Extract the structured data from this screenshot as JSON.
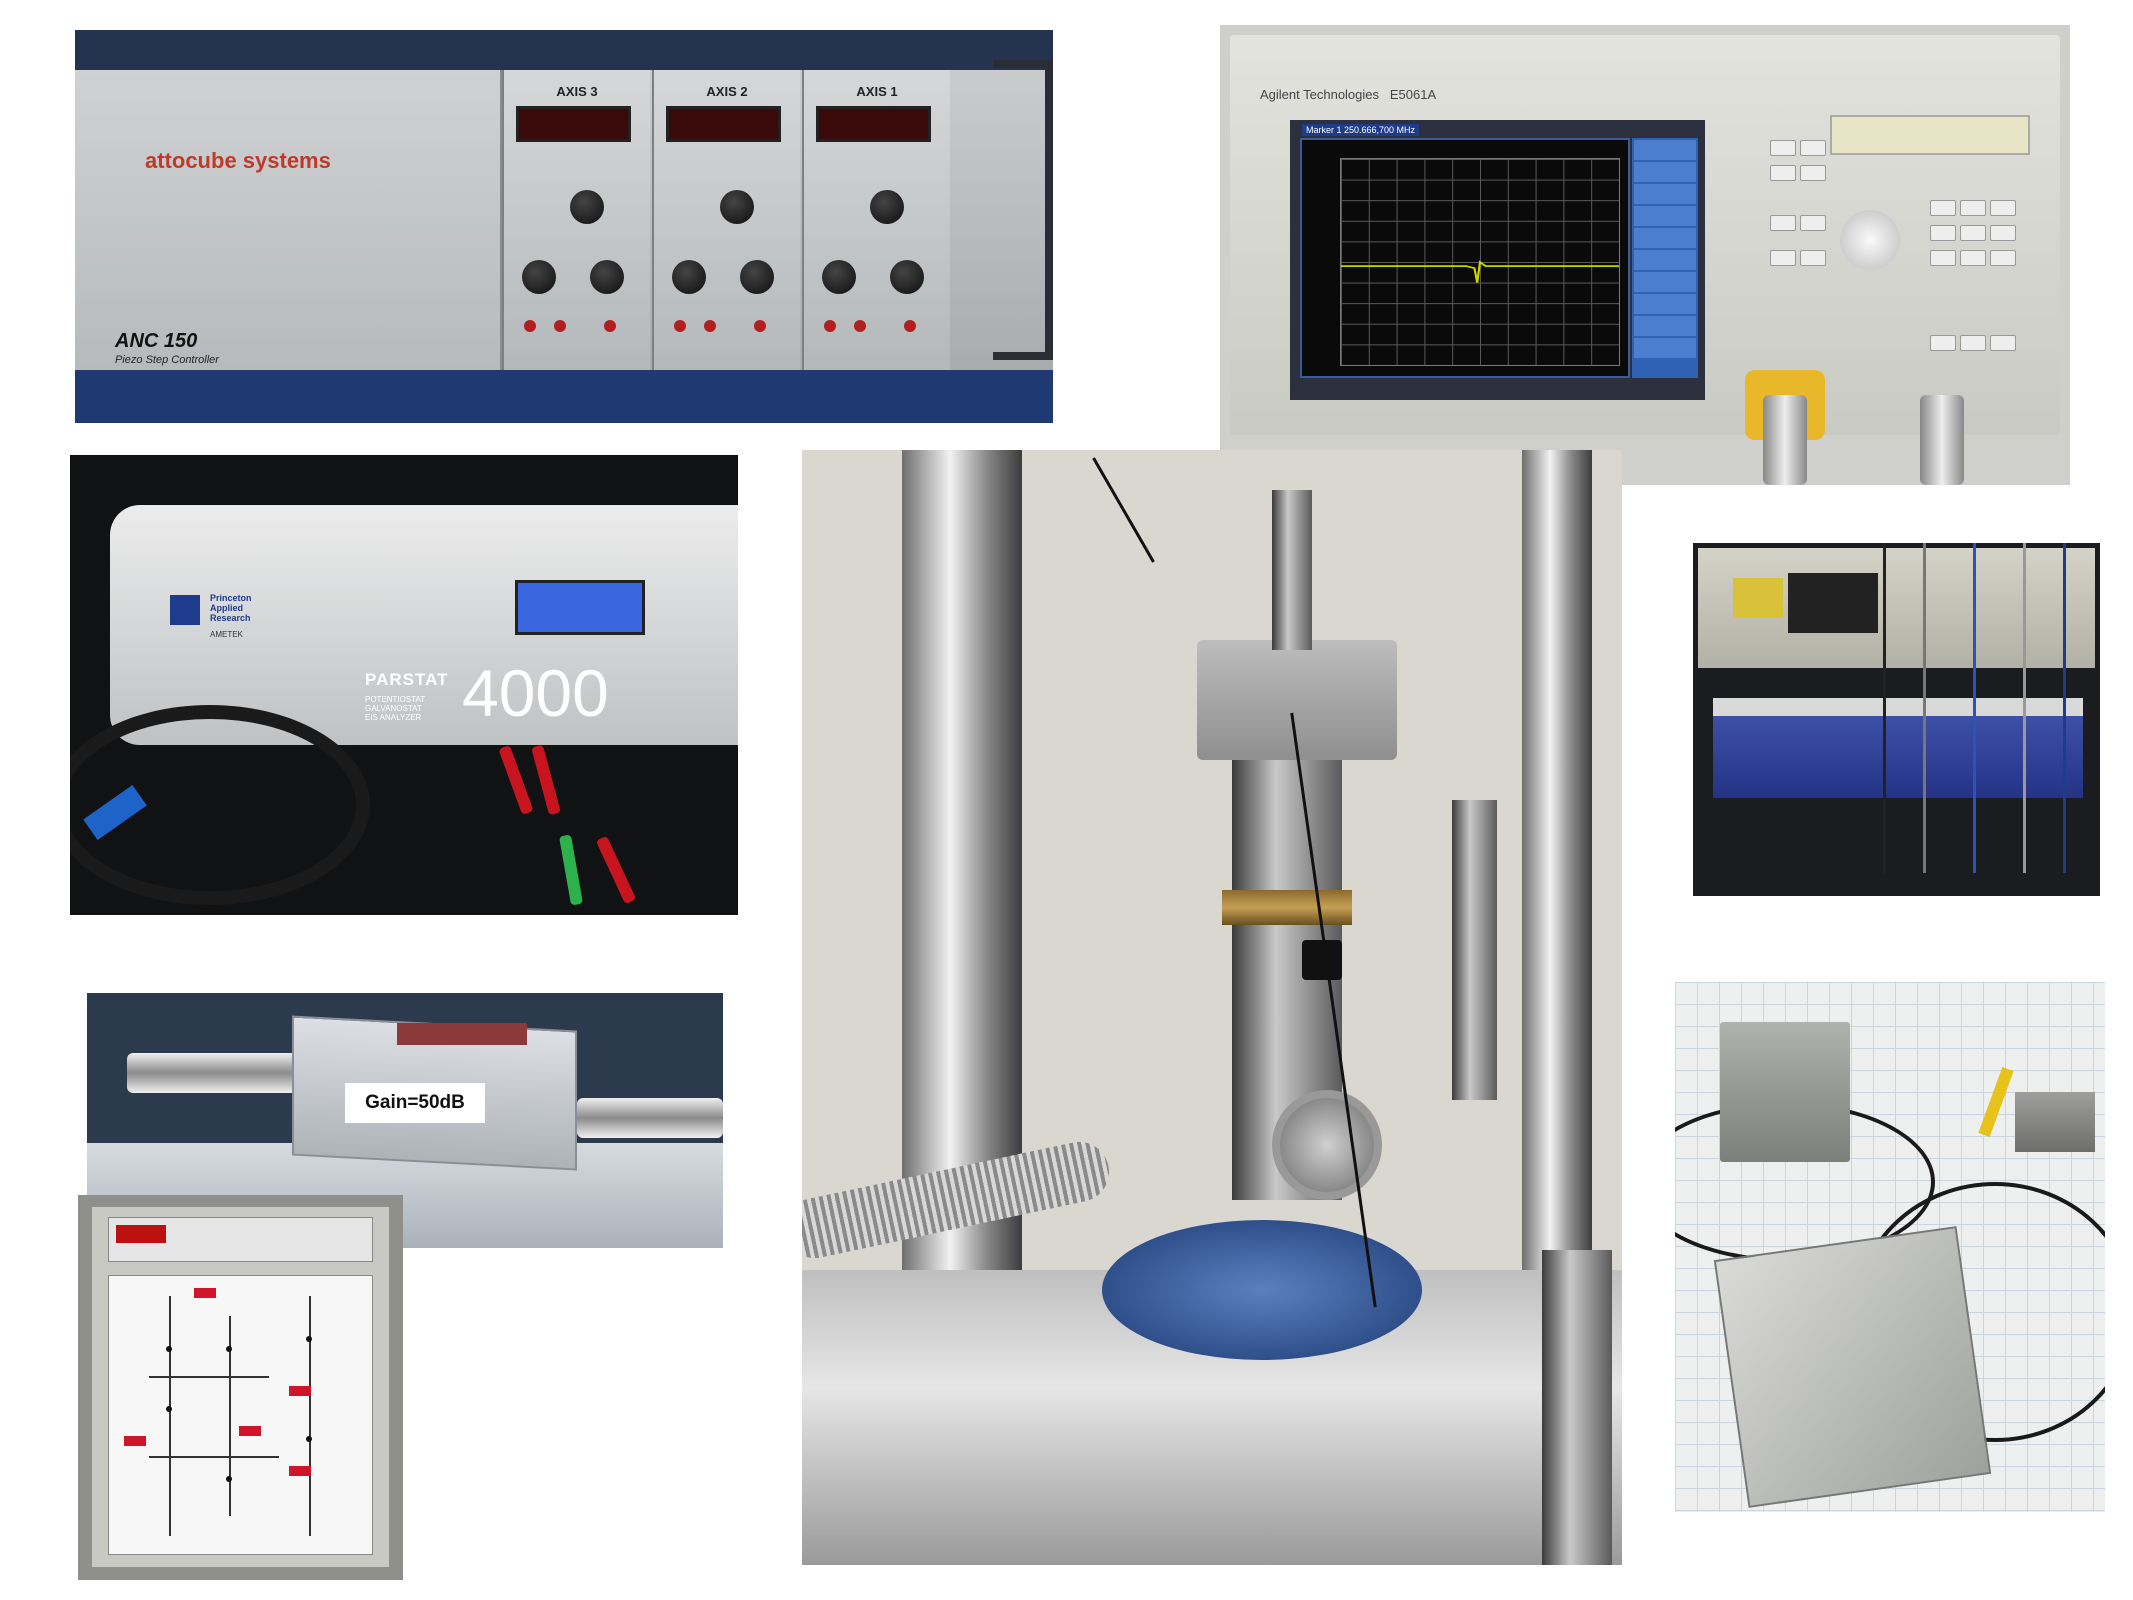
{
  "anc": {
    "brand": "attocube systems",
    "model": "ANC 150",
    "subtitle": "Piezo Step Controller",
    "axes": [
      "AXIS 3",
      "AXIS 2",
      "AXIS 1"
    ]
  },
  "network_analyzer": {
    "brand": "Agilent Technologies",
    "model": "E5061A",
    "marker_readout": "Marker 1  250.666,700 MHz"
  },
  "parstat": {
    "brand_lines": [
      "Princeton",
      "Applied",
      "Research"
    ],
    "maker": "AMETEK",
    "name": "PARSTAT",
    "number": "4000",
    "functions": [
      "POTENTIOSTAT",
      "GALVANOSTAT",
      "EIS ANALYZER"
    ]
  },
  "amplifier": {
    "label": "Gain=50dB"
  }
}
